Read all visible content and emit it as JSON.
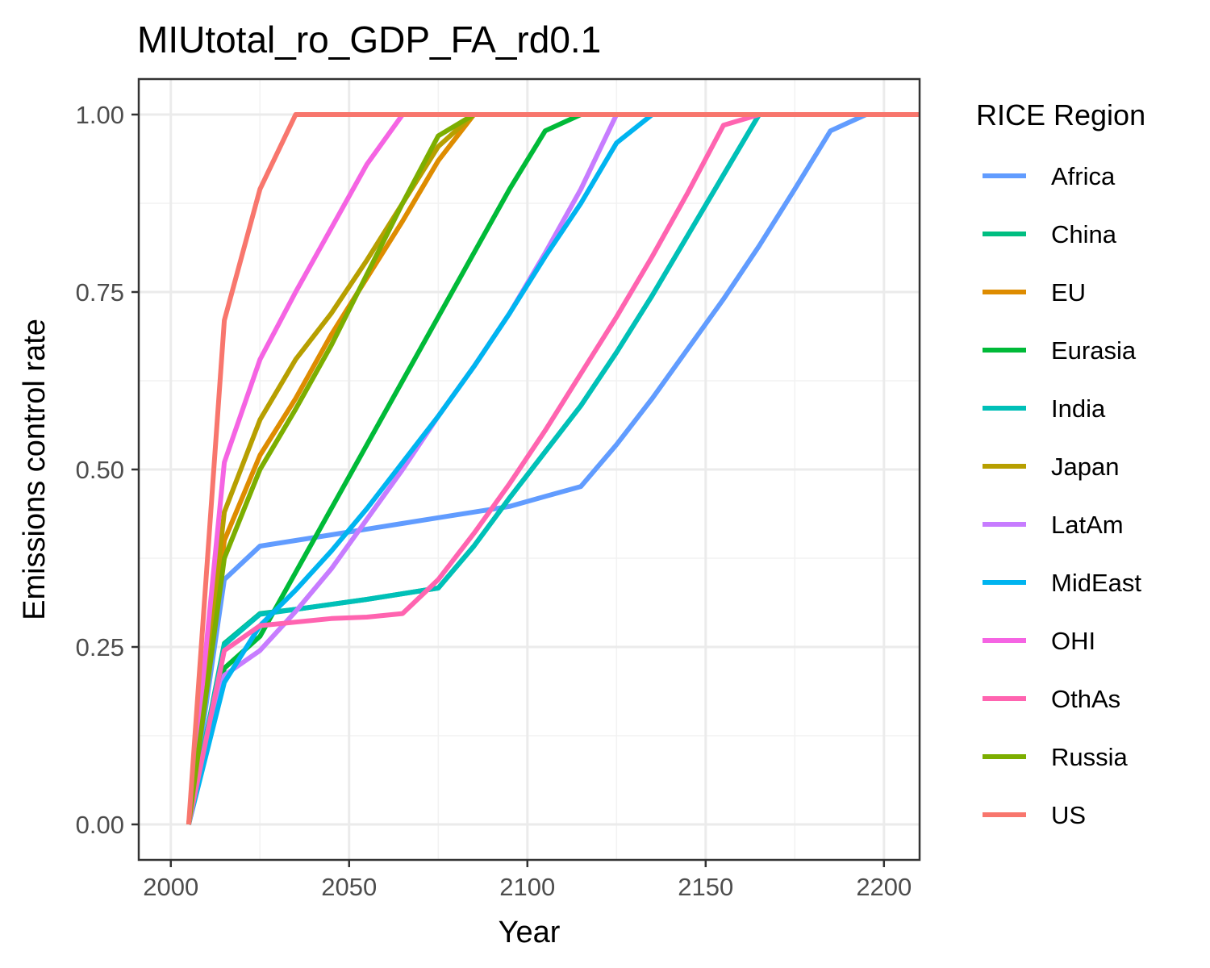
{
  "chart_data": {
    "type": "line",
    "title": "MIUtotal_ro_GDP_FA_rd0.1",
    "xlabel": "Year",
    "ylabel": "Emissions control rate",
    "xlim": [
      1991,
      2210
    ],
    "ylim": [
      -0.05,
      1.05
    ],
    "x_ticks": [
      2000,
      2050,
      2100,
      2150,
      2200
    ],
    "x_tick_labels": [
      "2000",
      "2050",
      "2100",
      "2150",
      "2200"
    ],
    "y_ticks": [
      0,
      0.25,
      0.5,
      0.75,
      1
    ],
    "y_tick_labels": [
      "0.00",
      "0.25",
      "0.50",
      "0.75",
      "1.00"
    ],
    "grid": true,
    "legend_title": "RICE Region",
    "legend_position": "right",
    "x": [
      2005,
      2015,
      2025,
      2035,
      2045,
      2055,
      2065,
      2075,
      2085,
      2095,
      2105,
      2115,
      2125,
      2135,
      2145,
      2155,
      2165,
      2175,
      2185,
      2195,
      2205,
      2215
    ],
    "series": [
      {
        "name": "Africa",
        "color": "#619CFF",
        "values": [
          0,
          0.345,
          0.392,
          0.4,
          0.408,
          0.416,
          0.424,
          0.432,
          0.44,
          0.448,
          0.462,
          0.476,
          0.535,
          0.6,
          0.67,
          0.74,
          0.815,
          0.895,
          0.977,
          1.0,
          1.0,
          1.0
        ]
      },
      {
        "name": "China",
        "color": "#00BE81",
        "values": [
          0,
          0.255,
          0.297,
          0.303,
          0.31,
          0.317,
          0.325,
          0.333,
          0.392,
          0.46,
          0.525,
          0.59,
          0.665,
          0.745,
          0.83,
          0.915,
          1.0,
          1.0,
          1.0,
          1.0,
          1.0,
          1.0
        ]
      },
      {
        "name": "EU",
        "color": "#DE8C00",
        "values": [
          0,
          0.4,
          0.52,
          0.6,
          0.69,
          0.77,
          0.85,
          0.935,
          1.0,
          1.0,
          1.0,
          1.0,
          1.0,
          1.0,
          1.0,
          1.0,
          1.0,
          1.0,
          1.0,
          1.0,
          1.0,
          1.0
        ]
      },
      {
        "name": "Eurasia",
        "color": "#00BA38",
        "values": [
          0,
          0.22,
          0.265,
          0.355,
          0.445,
          0.535,
          0.625,
          0.715,
          0.805,
          0.895,
          0.977,
          1.0,
          1.0,
          1.0,
          1.0,
          1.0,
          1.0,
          1.0,
          1.0,
          1.0,
          1.0,
          1.0
        ]
      },
      {
        "name": "India",
        "color": "#00C0B8",
        "values": [
          0,
          0.253,
          0.296,
          0.303,
          0.31,
          0.317,
          0.325,
          0.333,
          0.392,
          0.46,
          0.525,
          0.59,
          0.665,
          0.745,
          0.83,
          0.915,
          1.0,
          1.0,
          1.0,
          1.0,
          1.0,
          1.0
        ]
      },
      {
        "name": "Japan",
        "color": "#B79F00",
        "values": [
          0,
          0.44,
          0.57,
          0.655,
          0.72,
          0.795,
          0.875,
          0.955,
          1.0,
          1.0,
          1.0,
          1.0,
          1.0,
          1.0,
          1.0,
          1.0,
          1.0,
          1.0,
          1.0,
          1.0,
          1.0,
          1.0
        ]
      },
      {
        "name": "LatAm",
        "color": "#C77CFF",
        "values": [
          0,
          0.21,
          0.245,
          0.3,
          0.36,
          0.43,
          0.5,
          0.575,
          0.645,
          0.72,
          0.805,
          0.895,
          1.0,
          1.0,
          1.0,
          1.0,
          1.0,
          1.0,
          1.0,
          1.0,
          1.0,
          1.0
        ]
      },
      {
        "name": "MidEast",
        "color": "#00B4F0",
        "values": [
          0,
          0.2,
          0.28,
          0.33,
          0.385,
          0.445,
          0.51,
          0.575,
          0.645,
          0.72,
          0.8,
          0.875,
          0.96,
          1.0,
          1.0,
          1.0,
          1.0,
          1.0,
          1.0,
          1.0,
          1.0,
          1.0
        ]
      },
      {
        "name": "OHI",
        "color": "#F564E3",
        "values": [
          0,
          0.51,
          0.655,
          0.75,
          0.84,
          0.93,
          1.0,
          1.0,
          1.0,
          1.0,
          1.0,
          1.0,
          1.0,
          1.0,
          1.0,
          1.0,
          1.0,
          1.0,
          1.0,
          1.0,
          1.0,
          1.0
        ]
      },
      {
        "name": "OthAs",
        "color": "#FF64B0",
        "values": [
          0,
          0.245,
          0.28,
          0.285,
          0.29,
          0.292,
          0.297,
          0.345,
          0.41,
          0.48,
          0.555,
          0.635,
          0.715,
          0.8,
          0.89,
          0.985,
          1.0,
          1.0,
          1.0,
          1.0,
          1.0,
          1.0
        ]
      },
      {
        "name": "Russia",
        "color": "#7CAE00",
        "values": [
          0,
          0.375,
          0.5,
          0.585,
          0.675,
          0.775,
          0.875,
          0.97,
          1.0,
          1.0,
          1.0,
          1.0,
          1.0,
          1.0,
          1.0,
          1.0,
          1.0,
          1.0,
          1.0,
          1.0,
          1.0,
          1.0
        ]
      },
      {
        "name": "US",
        "color": "#F8766D",
        "values": [
          0,
          0.71,
          0.895,
          1.0,
          1.0,
          1.0,
          1.0,
          1.0,
          1.0,
          1.0,
          1.0,
          1.0,
          1.0,
          1.0,
          1.0,
          1.0,
          1.0,
          1.0,
          1.0,
          1.0,
          1.0,
          1.0
        ]
      }
    ]
  }
}
